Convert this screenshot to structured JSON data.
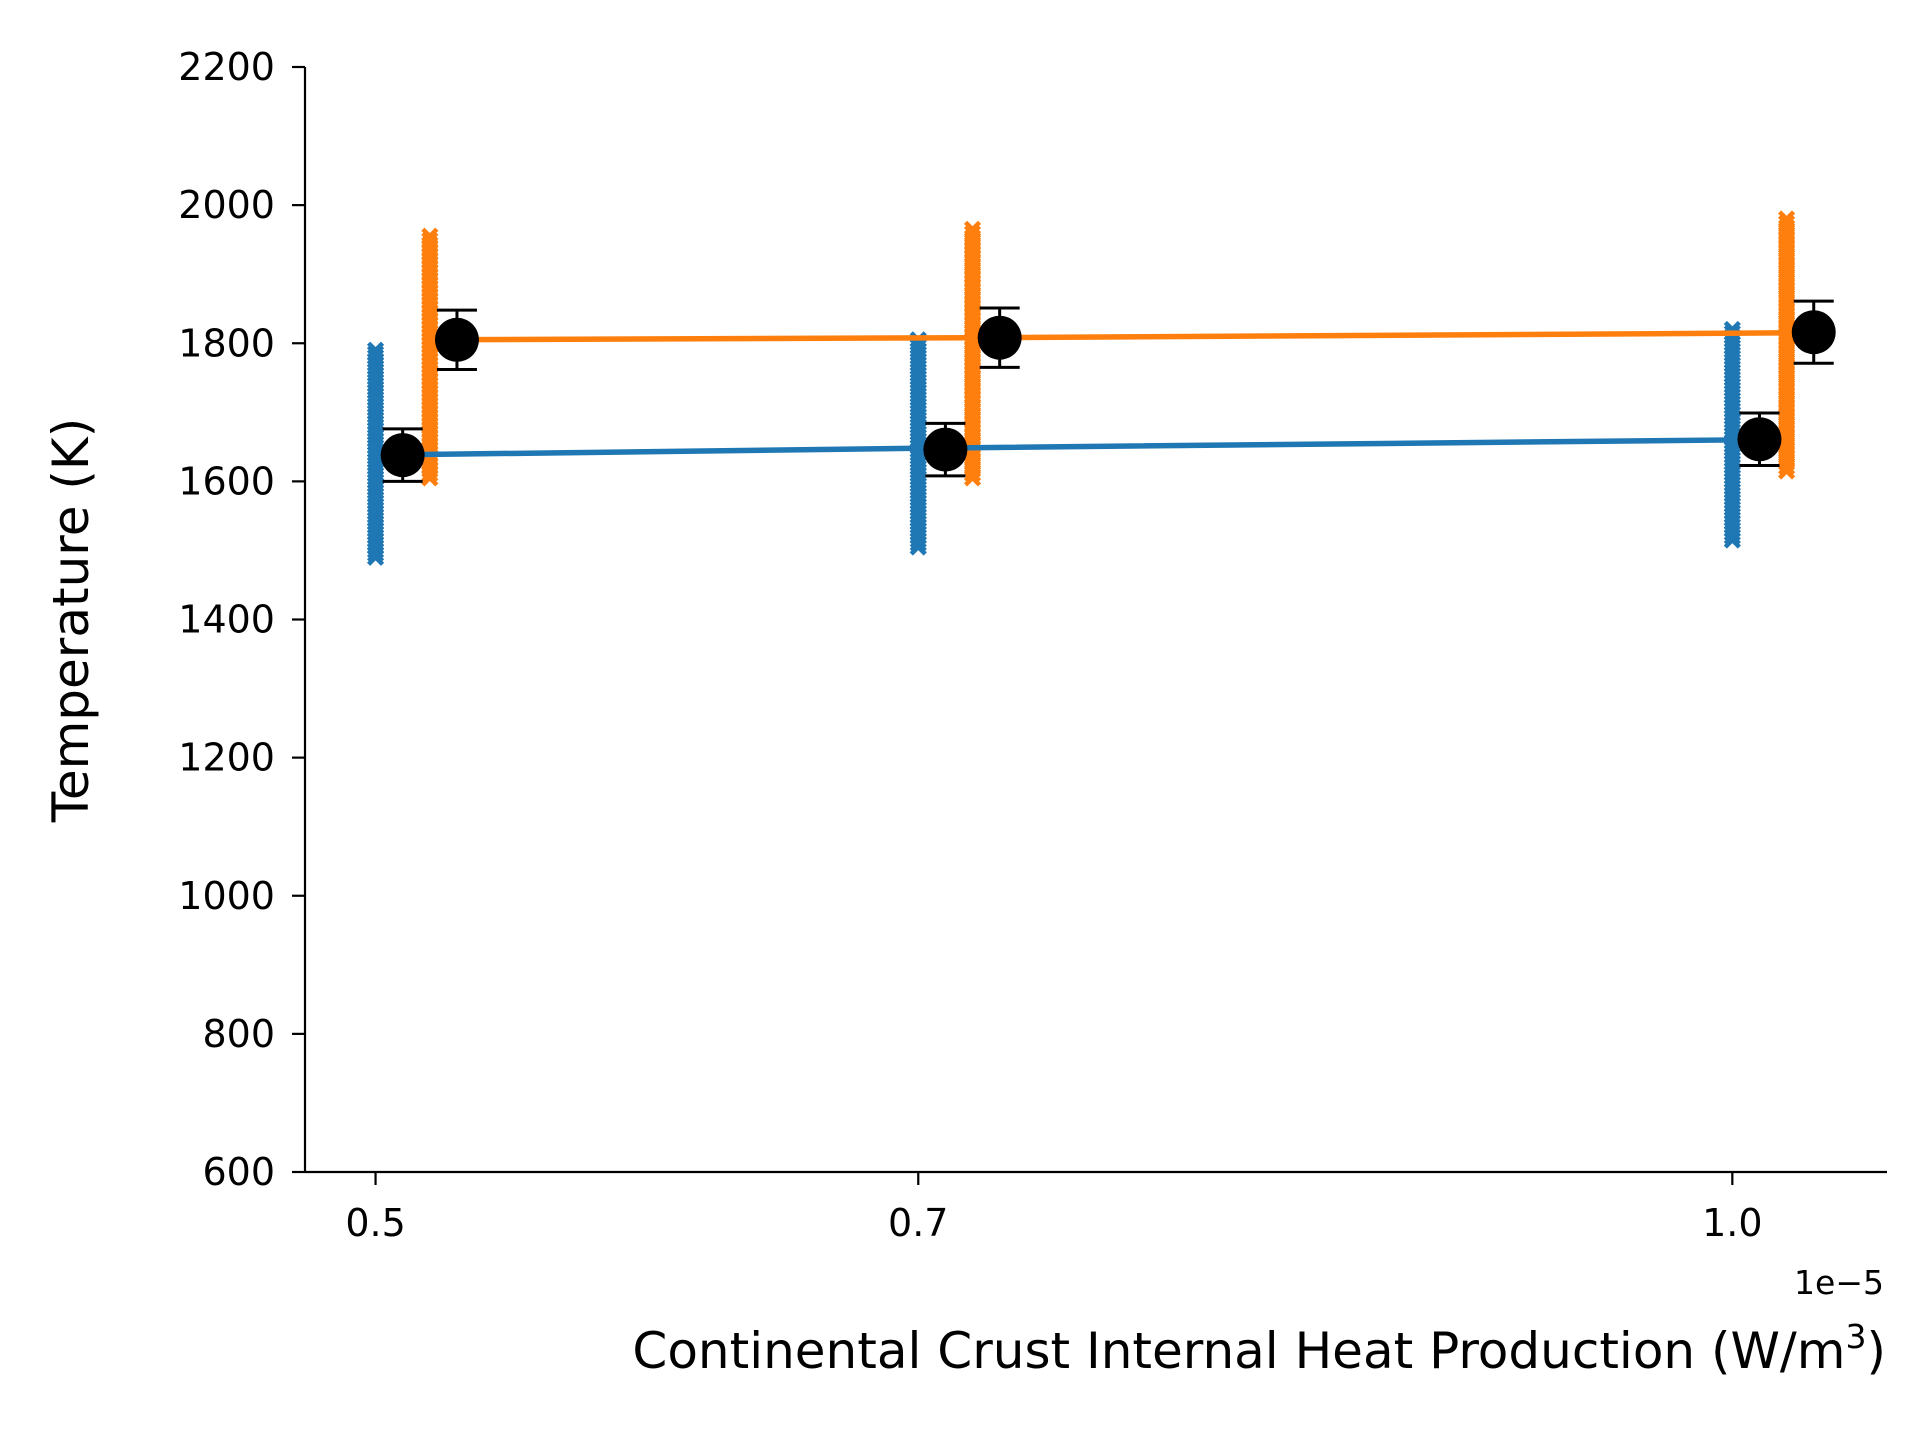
{
  "chart_data": {
    "type": "scatter",
    "title": "",
    "xlabel": "Continental Crust Internal Heat Production (W/m",
    "xlabel_superscript": "3",
    "xlabel_suffix": ")",
    "ylabel": "Temperature (K)",
    "x_offset_label": "1e−5",
    "x_tick_labels": [
      "0.5",
      "0.7",
      "1.0"
    ],
    "x_tick_values": [
      0.5,
      0.7,
      1.0
    ],
    "xlim": [
      0.474,
      1.057
    ],
    "ylim": [
      600,
      2200
    ],
    "y_ticks": [
      600,
      800,
      1000,
      1200,
      1400,
      1600,
      1800,
      2000,
      2200
    ],
    "grid": false,
    "legend": "none",
    "series": [
      {
        "color": "#1f77b4",
        "x_samples": [
          0.5,
          0.7,
          1.0
        ],
        "x_line": [
          0.5,
          0.7,
          1.0
        ],
        "y_line": [
          1638,
          1648,
          1660
        ],
        "sample_ranges": [
          [
            1490,
            1790
          ],
          [
            1505,
            1805
          ],
          [
            1515,
            1820
          ]
        ],
        "mean_x": [
          0.51,
          0.71,
          1.01
        ],
        "mean_y": [
          1638,
          1646,
          1661
        ],
        "mean_err": [
          38,
          38,
          38
        ]
      },
      {
        "color": "#ff7f0e",
        "x_samples": [
          0.52,
          0.72,
          1.02
        ],
        "x_line": [
          0.52,
          0.72,
          1.02
        ],
        "y_line": [
          1805,
          1808,
          1815
        ],
        "sample_ranges": [
          [
            1605,
            1955
          ],
          [
            1605,
            1965
          ],
          [
            1615,
            1980
          ]
        ],
        "mean_x": [
          0.53,
          0.73,
          1.03
        ],
        "mean_y": [
          1805,
          1808,
          1816
        ],
        "mean_err": [
          43,
          43,
          45
        ]
      }
    ],
    "mean_marker_color": "#000000"
  }
}
